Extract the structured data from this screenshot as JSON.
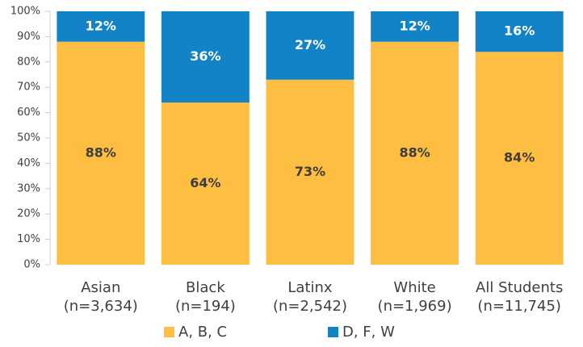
{
  "chart_data": {
    "type": "stacked_bar",
    "categories": [
      [
        "Asian",
        "(n=3,634)"
      ],
      [
        "Black",
        "(n=194)"
      ],
      [
        "Latinx",
        "(n=2,542)"
      ],
      [
        "White",
        "(n=1,969)"
      ],
      [
        "All Students",
        "(n=11,745)"
      ]
    ],
    "series": [
      {
        "name": "A, B, C",
        "color": "#fdbe42",
        "values": [
          88,
          64,
          73,
          88,
          84
        ],
        "value_labels": [
          "88%",
          "64%",
          "73%",
          "88%",
          "84%"
        ]
      },
      {
        "name": "D, F, W",
        "color": "#1283c6",
        "values": [
          12,
          36,
          27,
          12,
          16
        ],
        "value_labels": [
          "12%",
          "36%",
          "27%",
          "12%",
          "16%"
        ]
      }
    ],
    "ylim": [
      0,
      100
    ],
    "yticks": [
      {
        "value": 0,
        "label": "0%"
      },
      {
        "value": 10,
        "label": "10%"
      },
      {
        "value": 20,
        "label": "20%"
      },
      {
        "value": 30,
        "label": "30%"
      },
      {
        "value": 40,
        "label": "40%"
      },
      {
        "value": 50,
        "label": "50%"
      },
      {
        "value": 60,
        "label": "60%"
      },
      {
        "value": 70,
        "label": "70%"
      },
      {
        "value": 80,
        "label": "80%"
      },
      {
        "value": 90,
        "label": "90%"
      },
      {
        "value": 100,
        "label": "100%"
      }
    ],
    "legend": "bottom"
  }
}
